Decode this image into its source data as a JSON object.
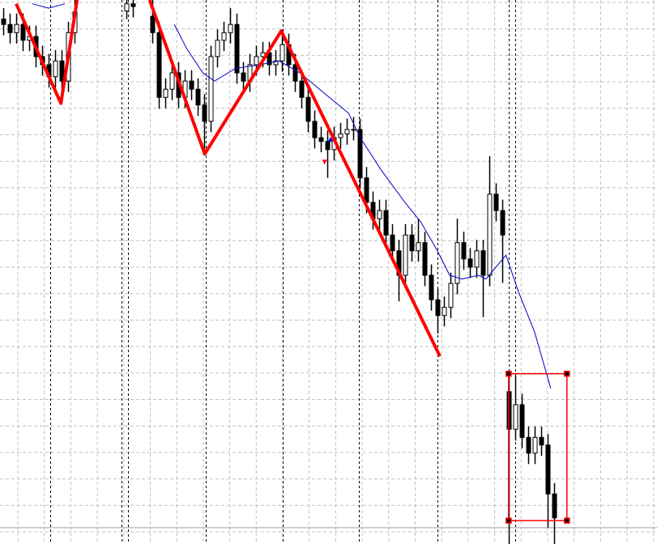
{
  "chart_data": {
    "type": "candlestick",
    "grid": true,
    "xlim": [
      -0.5,
      100.9
    ],
    "ylim": [
      0,
      100
    ],
    "colors": {
      "background": "#ffffff",
      "grid": "#c0c0c0",
      "candle": "#000000",
      "moving_average": "#0000cc",
      "zigzag": "#ff0000",
      "selection": "#ff0000",
      "separator": "#000000",
      "hline": "#a0a0a0"
    },
    "candles": [
      [
        96.5,
        98.5,
        93.5,
        95.5
      ],
      [
        95.5,
        97.5,
        92,
        94
      ],
      [
        94,
        97.5,
        92,
        95.5
      ],
      [
        95.5,
        97.5,
        90.6,
        92.6
      ],
      [
        92.6,
        95.3,
        90.6,
        93.3
      ],
      [
        93.3,
        95.3,
        87.6,
        89.6
      ],
      [
        89.6,
        91.6,
        86.1,
        88.1
      ],
      [
        88.1,
        90.1,
        83.9,
        85.9
      ],
      [
        85.9,
        90.8,
        83.9,
        88.8
      ],
      [
        88.8,
        90.8,
        81,
        85.1
      ],
      [
        85.1,
        96,
        83.1,
        94
      ],
      [
        94,
        100,
        92,
        97.8
      ],
      null,
      null,
      null,
      null,
      null,
      null,
      null,
      [
        98,
        100,
        96.5,
        99.3
      ],
      [
        99.3,
        100,
        96.8,
        98.8
      ],
      null,
      null,
      [
        97,
        100,
        92,
        94
      ],
      [
        94,
        96,
        80,
        82.1
      ],
      [
        82.1,
        85.6,
        80.1,
        83.6
      ],
      [
        83.6,
        88.6,
        81.6,
        86.6
      ],
      [
        86.6,
        88.6,
        80.1,
        82.1
      ],
      [
        82.1,
        87.1,
        80.1,
        85.1
      ],
      [
        85.1,
        87.1,
        81.6,
        83.6
      ],
      [
        83.6,
        85.6,
        78.7,
        80.7
      ],
      [
        80.7,
        82.7,
        71.7,
        77.7
      ],
      [
        77.7,
        91.6,
        75.7,
        89.6
      ],
      [
        89.6,
        94.6,
        87.6,
        92.6
      ],
      [
        92.6,
        96,
        90.6,
        94
      ],
      [
        94,
        98.5,
        92,
        95.5
      ],
      [
        95.5,
        97.5,
        84.6,
        86.6
      ],
      [
        86.6,
        88.6,
        83.1,
        85.1
      ],
      [
        85.1,
        90.1,
        83.1,
        88.1
      ],
      [
        88.1,
        91.6,
        86.1,
        89.6
      ],
      [
        89.6,
        92.3,
        87.6,
        90.3
      ],
      [
        90.3,
        92.3,
        86.1,
        88.1
      ],
      [
        88.1,
        90.8,
        86.1,
        88.8
      ],
      [
        88.8,
        94.6,
        86.8,
        91.8
      ],
      [
        91.8,
        93.8,
        86.1,
        88.1
      ],
      [
        88.1,
        90.1,
        83.1,
        85.1
      ],
      [
        85.1,
        87.1,
        80.1,
        82.1
      ],
      [
        82.1,
        84.1,
        75.7,
        77.7
      ],
      [
        77.7,
        79.7,
        72.7,
        74.7
      ],
      [
        74.7,
        76.7,
        72,
        74
      ],
      [
        74,
        76,
        67.3,
        72.5
      ],
      [
        72.5,
        76.7,
        70.5,
        74.7
      ],
      [
        74.7,
        77.4,
        72.7,
        75.4
      ],
      [
        75.4,
        78.2,
        73.4,
        76.2
      ],
      [
        76.2,
        78.5,
        74.2,
        76.2
      ],
      [
        76.2,
        78.2,
        65.3,
        67.3
      ],
      [
        67.3,
        69.3,
        60.8,
        62.8
      ],
      [
        62.8,
        64.8,
        57.8,
        59.8
      ],
      [
        59.8,
        63.3,
        57.8,
        61.3
      ],
      [
        61.3,
        63.3,
        54.8,
        56.8
      ],
      [
        56.8,
        58.8,
        51.9,
        53.9
      ],
      [
        53.9,
        55.9,
        44.6,
        49.4
      ],
      [
        49.4,
        58.8,
        47.4,
        56.8
      ],
      [
        56.8,
        58.8,
        51.9,
        53.9
      ],
      [
        53.9,
        59.8,
        51.9,
        55.4
      ],
      [
        55.4,
        57.4,
        47.4,
        49.4
      ],
      [
        49.4,
        51.4,
        42.9,
        44.9
      ],
      [
        44.9,
        46.9,
        38.7,
        42
      ],
      [
        42,
        45.5,
        40,
        43.5
      ],
      [
        43.5,
        49.9,
        41.5,
        47.9
      ],
      [
        47.9,
        59.8,
        45.9,
        55.4
      ],
      [
        55.4,
        57.4,
        50.4,
        52.4
      ],
      [
        52.4,
        54.4,
        48.9,
        50.9
      ],
      [
        50.9,
        55.9,
        48.9,
        53.9
      ],
      [
        53.9,
        55.9,
        41.7,
        49.4
      ],
      [
        49.4,
        71.3,
        47.4,
        64.3
      ],
      [
        64.3,
        66.3,
        59.3,
        61.3
      ],
      [
        61.3,
        63.3,
        48,
        56.8
      ],
      [
        28,
        31,
        0,
        21.1
      ],
      [
        21.1,
        31,
        19,
        25.6
      ],
      [
        25.6,
        27.6,
        17.6,
        19.6
      ],
      [
        19.6,
        21.6,
        14.7,
        16.7
      ],
      [
        16.7,
        21.6,
        14.7,
        19.6
      ],
      [
        19.6,
        21.6,
        16.2,
        18.2
      ],
      [
        18.2,
        20.2,
        3,
        9.2
      ],
      [
        9.2,
        11.2,
        0,
        4.8
      ]
    ],
    "moving_average": [
      [
        4.5,
        99.3
      ],
      [
        7,
        98.5
      ],
      [
        9.5,
        99.3
      ],
      [
        26.4,
        95.5
      ],
      [
        28.3,
        91.1
      ],
      [
        30.8,
        86.6
      ],
      [
        32.6,
        85.1
      ],
      [
        35.8,
        87.4
      ],
      [
        39.5,
        88.1
      ],
      [
        42.6,
        88.8
      ],
      [
        45.8,
        86.6
      ],
      [
        49.5,
        82.9
      ],
      [
        53.3,
        79.2
      ],
      [
        55.1,
        74.7
      ],
      [
        58.3,
        68.8
      ],
      [
        62,
        62.8
      ],
      [
        64.5,
        59.1
      ],
      [
        67,
        53.9
      ],
      [
        68.9,
        49.4
      ],
      [
        70.8,
        48.7
      ],
      [
        73.3,
        49.4
      ],
      [
        74.5,
        48.7
      ],
      [
        77.6,
        53.1
      ],
      [
        79.5,
        46.4
      ],
      [
        82,
        39
      ],
      [
        84.5,
        28.6
      ]
    ],
    "zigzag": [
      [
        [
          2,
          99.3
        ],
        [
          8.9,
          81
        ],
        [
          11.4,
          100
        ]
      ],
      [
        [
          22.6,
          100
        ],
        [
          31.1,
          71.7
        ],
        [
          42.9,
          94.3
        ],
        [
          67.4,
          34.5
        ]
      ]
    ],
    "arrows": [
      {
        "index": 49.6,
        "value": 70.2,
        "direction": "down",
        "color": "#ff0000"
      },
      {
        "index": 50.5,
        "value": 74.4,
        "direction": "up",
        "color": "#0000cc"
      }
    ],
    "selection_rectangle": {
      "from": [
        78,
        31.3
      ],
      "to": [
        87,
        4.3
      ]
    },
    "period_separators": [
      7.25,
      18.25,
      19.25,
      31.25,
      43.1,
      54.9,
      67,
      78,
      79
    ],
    "horizontal_line": 3
  }
}
